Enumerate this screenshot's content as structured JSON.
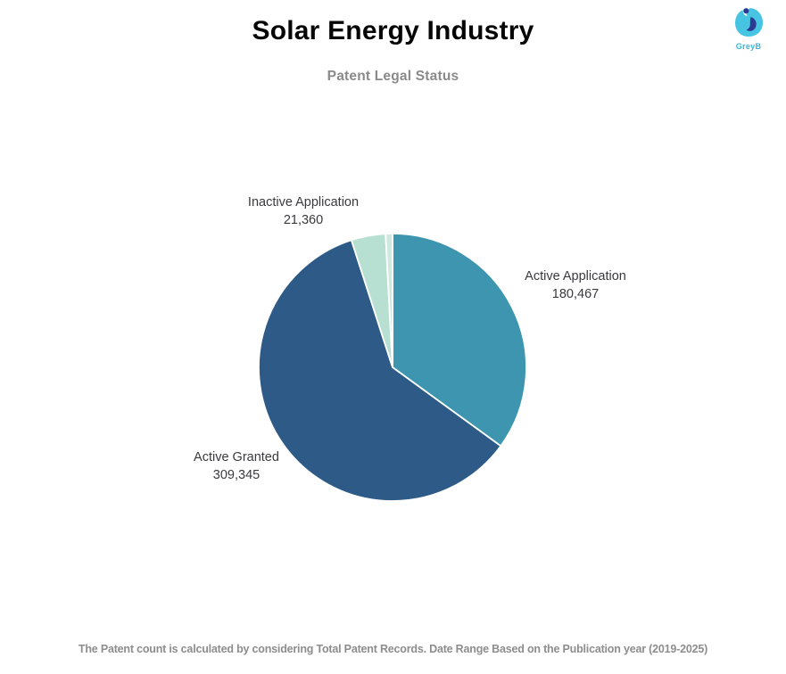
{
  "page": {
    "title": "Solar Energy Industry",
    "subtitle": "Patent Legal Status",
    "footer": "The Patent count is calculated by considering Total Patent Records. Date Range Based on the Publication year (2019-2025)"
  },
  "brand": {
    "wordmark": "GreyB",
    "logo_light_blue": "#47c4e2",
    "logo_navy": "#2b3990",
    "wordmark_color": "#3ab5d5"
  },
  "chart_data": {
    "type": "pie",
    "title": "Solar Energy Industry",
    "subtitle": "Patent Legal Status",
    "direction": "clockwise",
    "start_angle_deg": 0,
    "labels_on_chart": true,
    "legend_position": "none",
    "slice_border_color": "#ffffff",
    "segments": [
      {
        "label": "Active Application",
        "value": 180467,
        "display_value": "180,467",
        "color": "#3d95b0"
      },
      {
        "label": "Active Granted",
        "value": 309345,
        "display_value": "309,345",
        "color": "#2d5a86"
      },
      {
        "label": "Inactive Application",
        "value": 21360,
        "display_value": "21,360",
        "color": "#b7dfd2"
      },
      {
        "label": "",
        "value": null,
        "display_value": "",
        "color": "#cfe9de",
        "approx_angle_deg": 3
      }
    ]
  }
}
